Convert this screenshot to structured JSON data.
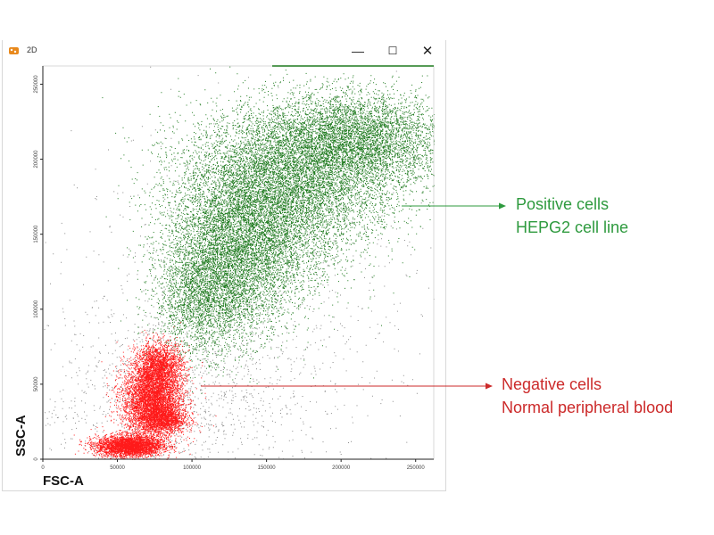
{
  "window": {
    "title": "2D",
    "minimize_glyph": "—",
    "maximize_glyph": "☐",
    "close_glyph": "✕",
    "icon": "cytometry-app-icon"
  },
  "chart_data": {
    "type": "scatter",
    "xlabel": "FSC-A",
    "ylabel": "SSC-A",
    "xlim": [
      0,
      262144
    ],
    "ylim": [
      0,
      262144
    ],
    "x_ticks": [
      "0",
      "50000",
      "100000",
      "150000",
      "200000",
      "250000"
    ],
    "x_tick_values": [
      0,
      50000,
      100000,
      150000,
      200000,
      250000
    ],
    "y_ticks": [
      "0",
      "50000",
      "100000",
      "150000",
      "200000",
      "250000"
    ],
    "y_tick_values": [
      0,
      50000,
      100000,
      150000,
      200000,
      250000
    ],
    "grid": false,
    "series": [
      {
        "name": "Positive cells",
        "color": "#1e7a1e",
        "clusters": [
          {
            "cx": 175000,
            "cy": 195000,
            "sx": 40000,
            "sy": 22000,
            "n": 9000
          },
          {
            "cx": 150000,
            "cy": 165000,
            "sx": 30000,
            "sy": 25000,
            "n": 6000
          },
          {
            "cx": 125000,
            "cy": 130000,
            "sx": 22000,
            "sy": 25000,
            "n": 4500
          },
          {
            "cx": 210000,
            "cy": 215000,
            "sx": 30000,
            "sy": 15000,
            "n": 4000
          },
          {
            "cx": 105000,
            "cy": 105000,
            "sx": 15000,
            "sy": 18000,
            "n": 1500
          }
        ]
      },
      {
        "name": "Negative cells",
        "color": "#ff1a1a",
        "clusters": [
          {
            "cx": 58000,
            "cy": 9000,
            "sx": 11000,
            "sy": 3500,
            "n": 3500
          },
          {
            "cx": 73000,
            "cy": 40000,
            "sx": 10000,
            "sy": 12000,
            "n": 4500
          },
          {
            "cx": 80000,
            "cy": 27000,
            "sx": 8000,
            "sy": 5000,
            "n": 1500
          },
          {
            "cx": 78000,
            "cy": 62000,
            "sx": 8000,
            "sy": 8000,
            "n": 2000
          }
        ]
      },
      {
        "name": "debris",
        "color": "#8a8a8a",
        "clusters": [
          {
            "cx": 90000,
            "cy": 40000,
            "sx": 50000,
            "sy": 35000,
            "n": 1400
          },
          {
            "cx": 150000,
            "cy": 120000,
            "sx": 70000,
            "sy": 60000,
            "n": 700
          }
        ]
      }
    ],
    "annotations": [
      {
        "lines": [
          "Positive cells",
          "HEPG2 cell line"
        ],
        "color": "#2e9a3e",
        "arrow_from": [
          450,
          231
        ],
        "arrow_to": [
          567,
          231
        ]
      },
      {
        "lines": [
          "Negative cells",
          "Normal peripheral blood"
        ],
        "color": "#cc2a2a",
        "arrow_from": [
          225,
          433
        ],
        "arrow_to": [
          551,
          433
        ]
      }
    ]
  },
  "annotations": {
    "positive": {
      "line1": "Positive cells",
      "line2": "HEPG2 cell line"
    },
    "negative": {
      "line1": "Negative cells",
      "line2": "Normal peripheral blood"
    }
  }
}
